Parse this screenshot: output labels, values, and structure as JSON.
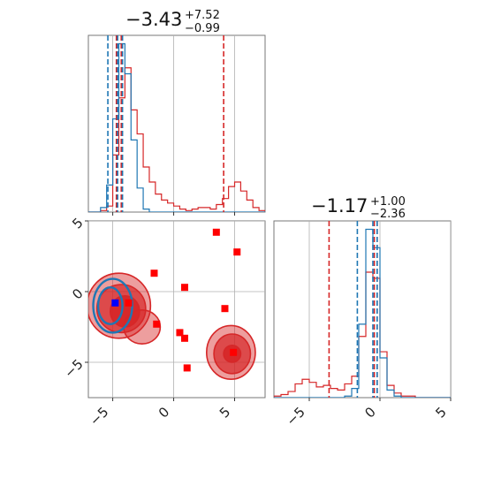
{
  "chart_data": {
    "type": "corner",
    "grid": true,
    "colors": {
      "posterior_a": "#d62728",
      "posterior_b": "#1f77b4",
      "markers": "#ff0000",
      "truth_marker": "#0000ff",
      "grid": "#b0b0b0"
    },
    "parameters": [
      {
        "title": {
          "median": "−3.43",
          "plus": "+7.52",
          "minus": "−0.99"
        },
        "range": [
          -7,
          7.5
        ],
        "ticks": [
          -5,
          0,
          5
        ],
        "tick_labels": [
          "−5",
          "0",
          "5"
        ],
        "quantile_lines_red": [
          -4.7,
          -4.3,
          4.1
        ],
        "quantile_lines_blue": [
          -5.4,
          -4.6,
          -4.2
        ],
        "hist_red": {
          "bins": [
            -7,
            -6.5,
            -6,
            -5.5,
            -5,
            -4.5,
            -4,
            -3.5,
            -3,
            -2.5,
            -2,
            -1.5,
            -1,
            -0.5,
            0,
            0.5,
            1,
            1.5,
            2,
            2.5,
            3,
            3.5,
            4,
            4.5,
            5,
            5.5,
            6,
            6.5,
            7,
            7.5
          ],
          "counts": [
            0,
            0,
            1,
            4,
            38,
            76,
            96,
            68,
            52,
            30,
            20,
            12,
            8,
            6,
            4,
            2,
            1,
            2,
            3,
            3,
            2,
            5,
            9,
            17,
            20,
            14,
            8,
            3,
            1
          ]
        },
        "hist_blue": {
          "bins": [
            -7,
            -6.5,
            -6,
            -5.5,
            -5,
            -4.5,
            -4,
            -3.5,
            -3,
            -2.5,
            -2,
            -1.5,
            -1,
            -0.5,
            0,
            0.5,
            1,
            1.5,
            2,
            2.5,
            3,
            3.5,
            4,
            4.5,
            5,
            5.5,
            6,
            6.5,
            7,
            7.5
          ],
          "counts": [
            0,
            0,
            3,
            18,
            62,
            112,
            92,
            48,
            16,
            2,
            0,
            0,
            0,
            0,
            0,
            0,
            0,
            0,
            0,
            0,
            0,
            0,
            0,
            0,
            0,
            0,
            0,
            0,
            0
          ]
        }
      },
      {
        "title": {
          "median": "−1.17",
          "plus": "+1.00",
          "minus": "−2.36"
        },
        "range": [
          -7.5,
          5
        ],
        "ticks": [
          -5,
          0,
          5
        ],
        "tick_labels": [
          "−5",
          "0",
          "5"
        ],
        "quantile_lines_red": [
          -3.6,
          -0.4,
          -0.2
        ],
        "quantile_lines_blue": [
          -1.6,
          -0.5,
          -0.2
        ],
        "hist_red": {
          "bins": [
            -7.5,
            -7,
            -6.5,
            -6,
            -5.5,
            -5,
            -4.5,
            -4,
            -3.5,
            -3,
            -2.5,
            -2,
            -1.5,
            -1,
            -0.5,
            0,
            0.5,
            1,
            1.5,
            2,
            2.5,
            3,
            3.5,
            4,
            4.5,
            5
          ],
          "counts": [
            1,
            2,
            4,
            9,
            12,
            10,
            7,
            8,
            6,
            5,
            9,
            14,
            40,
            82,
            78,
            30,
            8,
            3,
            1,
            1,
            0,
            0,
            0,
            0,
            0
          ]
        },
        "hist_blue": {
          "bins": [
            -7.5,
            -7,
            -6.5,
            -6,
            -5.5,
            -5,
            -4.5,
            -4,
            -3.5,
            -3,
            -2.5,
            -2,
            -1.5,
            -1,
            -0.5,
            0,
            0.5,
            1,
            1.5,
            2,
            2.5,
            3,
            3.5,
            4,
            4.5,
            5
          ],
          "counts": [
            0,
            0,
            0,
            0,
            0,
            0,
            0,
            0,
            0,
            0,
            1,
            6,
            48,
            110,
            98,
            26,
            5,
            1,
            0,
            0,
            0,
            0,
            0,
            0,
            0
          ]
        }
      }
    ],
    "joint": {
      "x_range": [
        -7,
        7.5
      ],
      "y_range": [
        -7.5,
        5
      ],
      "contours_red": [
        {
          "center": [
            -4.5,
            -1.0
          ],
          "radii": [
            2.6,
            2.3
          ],
          "level": 3
        },
        {
          "center": [
            -4.3,
            -1.2
          ],
          "radii": [
            2.0,
            1.7
          ],
          "level": 2
        },
        {
          "center": [
            -4.0,
            -1.4
          ],
          "radii": [
            1.2,
            1.1
          ],
          "level": 1
        },
        {
          "center": [
            -2.6,
            -2.5
          ],
          "radii": [
            1.5,
            1.2
          ],
          "level": 3
        },
        {
          "center": [
            4.7,
            -4.3
          ],
          "radii": [
            2.0,
            1.9
          ],
          "level": 3
        },
        {
          "center": [
            4.8,
            -4.4
          ],
          "radii": [
            1.5,
            1.4
          ],
          "level": 2
        },
        {
          "center": [
            4.8,
            -4.4
          ],
          "radii": [
            0.7,
            0.6
          ],
          "level": 1
        }
      ],
      "contours_blue": [
        {
          "center": [
            -5.0,
            -1.0
          ],
          "radii": [
            1.6,
            1.9
          ]
        },
        {
          "center": [
            -5.2,
            -1.0
          ],
          "radii": [
            1.0,
            1.3
          ]
        }
      ],
      "red_points": [
        {
          "x": 3.5,
          "y": 4.2
        },
        {
          "x": 5.2,
          "y": 2.8
        },
        {
          "x": -1.6,
          "y": 1.3
        },
        {
          "x": 0.9,
          "y": 0.3
        },
        {
          "x": 4.2,
          "y": -1.2
        },
        {
          "x": -3.7,
          "y": -0.8
        },
        {
          "x": -1.4,
          "y": -2.3
        },
        {
          "x": 0.5,
          "y": -2.9
        },
        {
          "x": 0.9,
          "y": -3.3
        },
        {
          "x": 4.9,
          "y": -4.3
        },
        {
          "x": 1.1,
          "y": -5.4
        }
      ],
      "blue_point": {
        "x": -4.8,
        "y": -0.8
      }
    }
  }
}
